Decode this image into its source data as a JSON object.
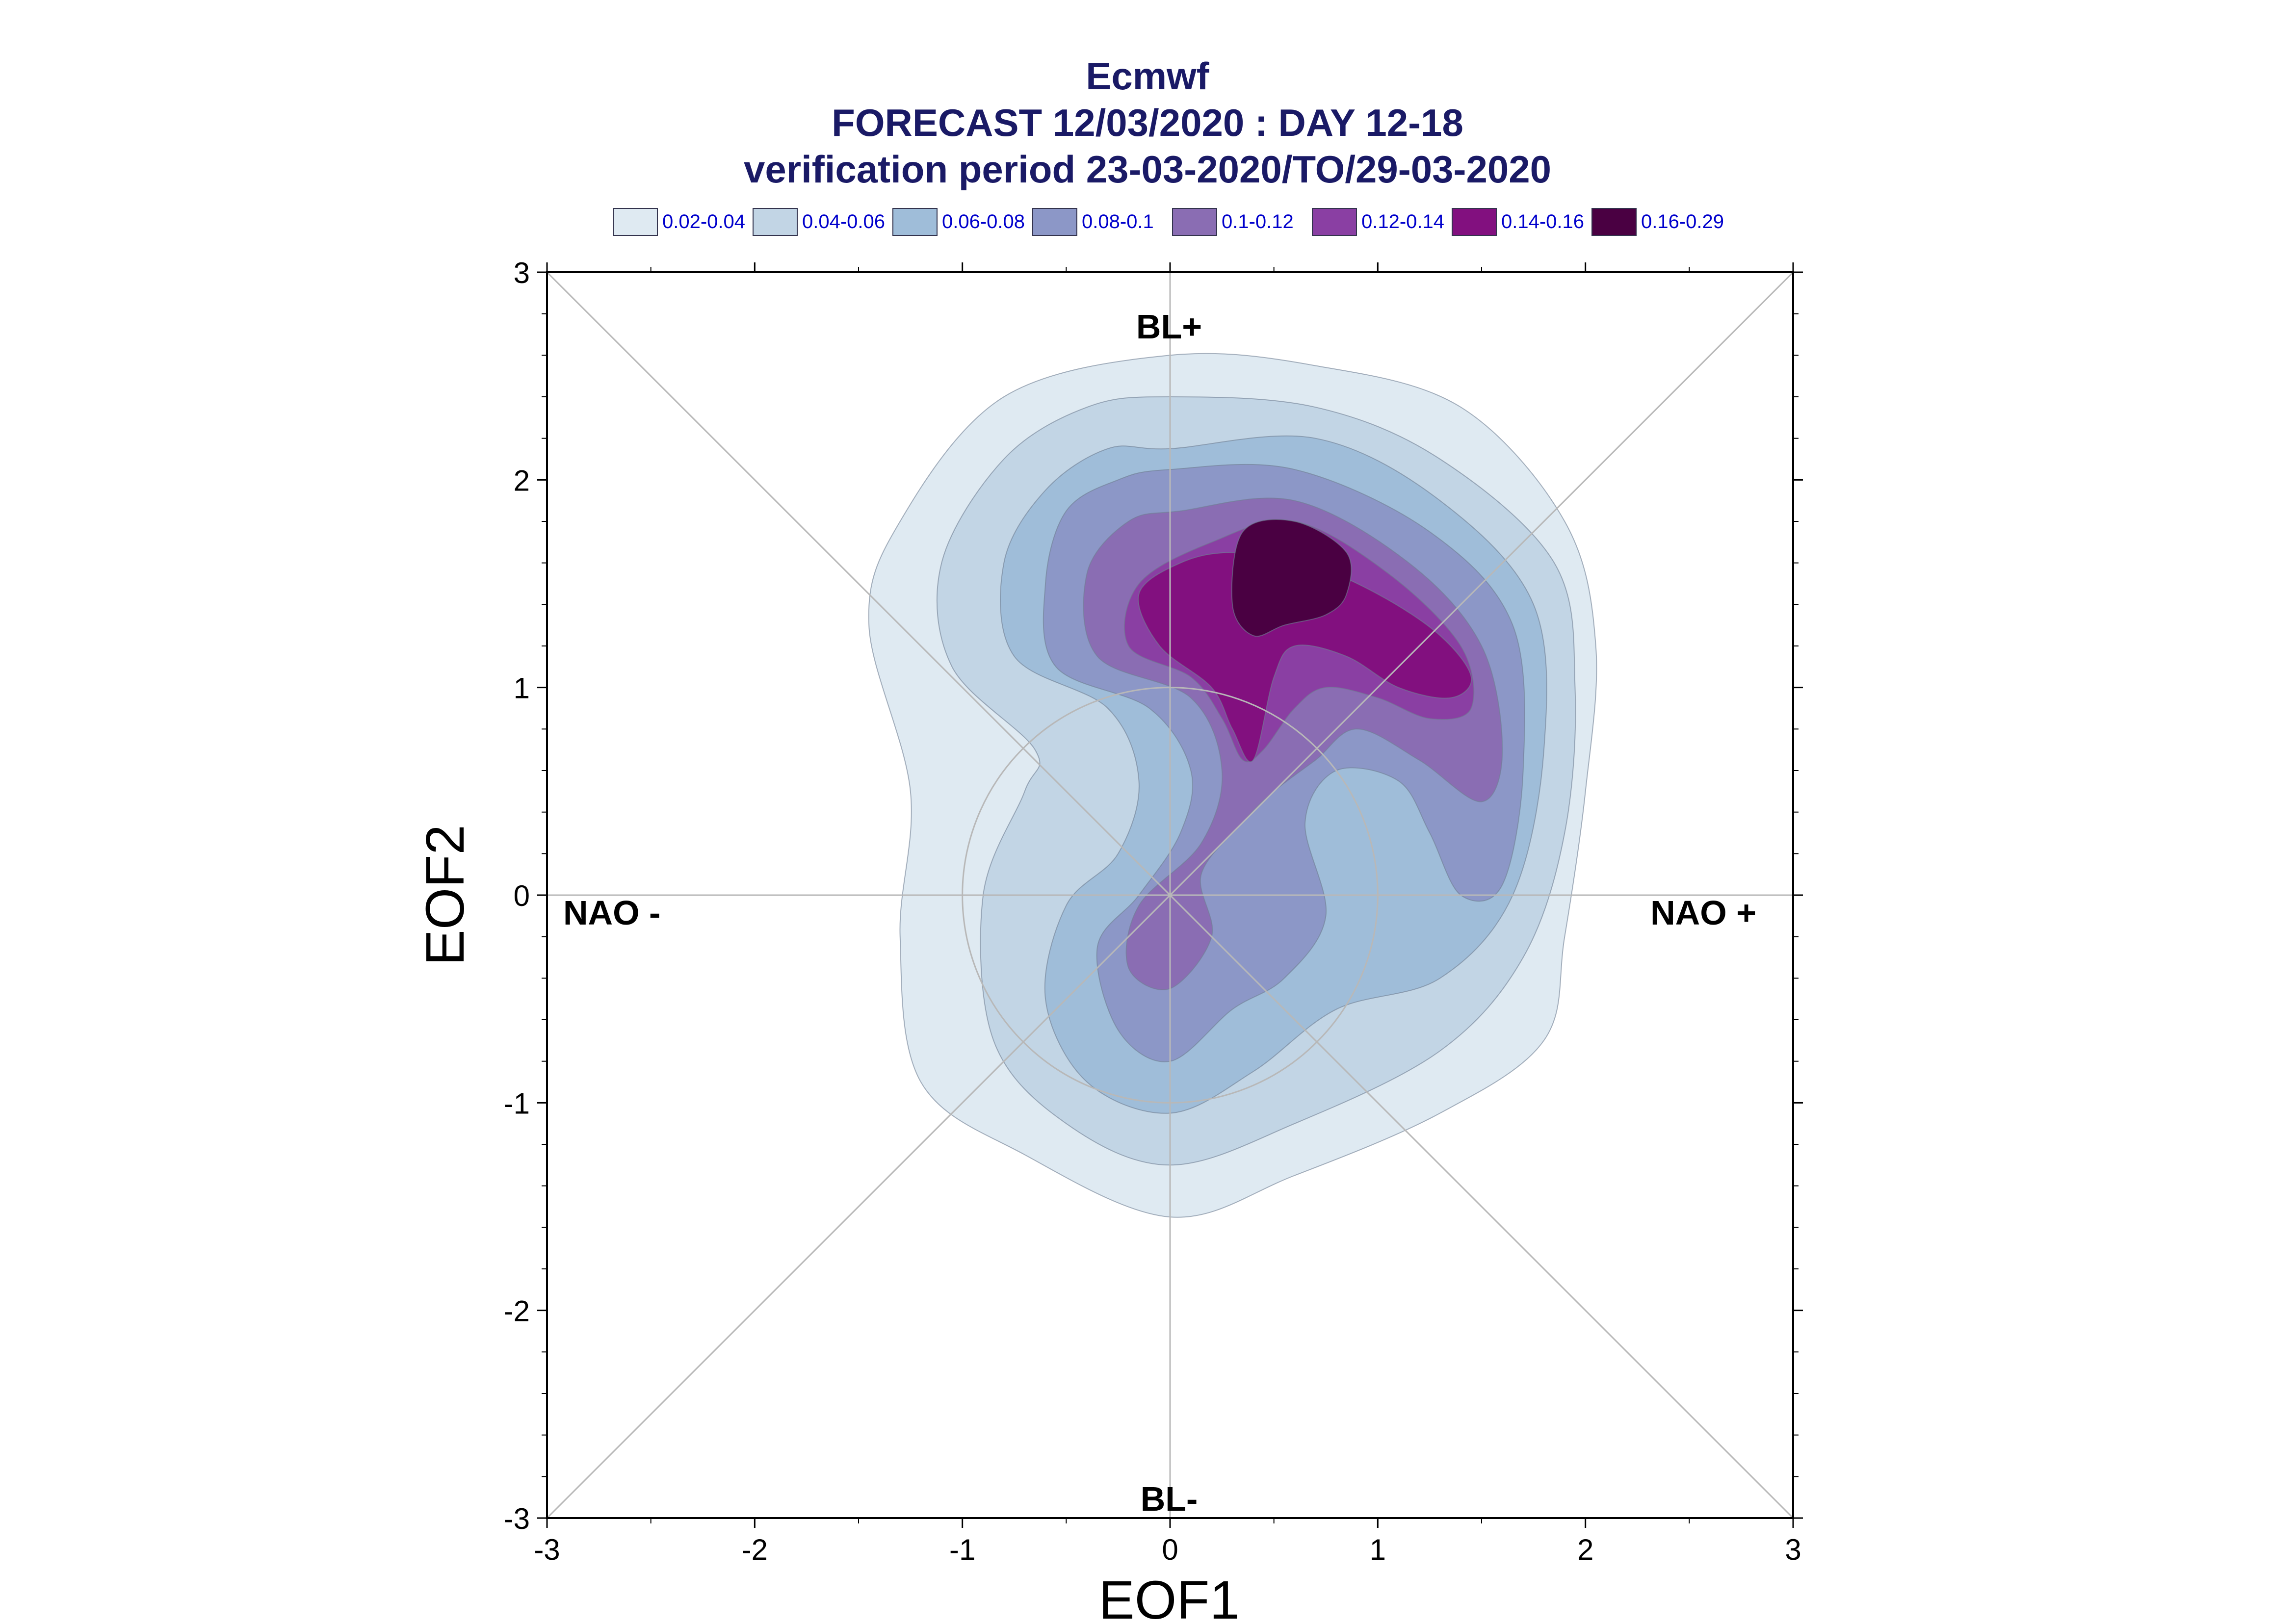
{
  "chart_data": {
    "type": "contour-density",
    "title": "Ecmwf",
    "subtitle_1": "FORECAST 12/03/2020 : DAY 12-18",
    "subtitle_2": "verification period 23-03-2020/TO/29-03-2020",
    "xlabel": "EOF1",
    "ylabel": "EOF2",
    "xlim": [
      -3,
      3
    ],
    "ylim": [
      -3,
      3
    ],
    "xticks": [
      "-3",
      "-2",
      "-1",
      "0",
      "1",
      "2",
      "3"
    ],
    "yticks": [
      "3",
      "2",
      "1",
      "0",
      "-1",
      "-2",
      "-3"
    ],
    "legend_placement": "top",
    "levels": [
      {
        "label": "0.02-0.04",
        "color": "#dfeaf2"
      },
      {
        "label": "0.04-0.06",
        "color": "#c2d5e5"
      },
      {
        "label": "0.06-0.08",
        "color": "#9fbdd9"
      },
      {
        "label": "0.08-0.1",
        "color": "#8c97c7"
      },
      {
        "label": "0.1-0.12",
        "color": "#8a6db3"
      },
      {
        "label": "0.12-0.14",
        "color": "#8a3fa3"
      },
      {
        "label": "0.14-0.16",
        "color": "#82107f"
      },
      {
        "label": "0.16-0.29",
        "color": "#4a0042"
      }
    ],
    "region_labels": {
      "top": "BL+",
      "bottom": "BL-",
      "left": "NAO -",
      "right": "NAO +"
    },
    "max_density_center": [
      0.55,
      1.55
    ],
    "reference_circle_radius": 1.0,
    "contours": [
      {
        "level": 0,
        "points": [
          [
            0.0,
            2.6
          ],
          [
            0.7,
            2.55
          ],
          [
            1.4,
            2.35
          ],
          [
            1.9,
            1.8
          ],
          [
            2.05,
            1.2
          ],
          [
            2.0,
            0.5
          ],
          [
            1.9,
            -0.2
          ],
          [
            1.8,
            -0.7
          ],
          [
            1.3,
            -1.05
          ],
          [
            0.6,
            -1.35
          ],
          [
            0.0,
            -1.55
          ],
          [
            -0.7,
            -1.25
          ],
          [
            -1.2,
            -0.9
          ],
          [
            -1.3,
            -0.2
          ],
          [
            -1.25,
            0.5
          ],
          [
            -1.45,
            1.3
          ],
          [
            -1.3,
            1.8
          ],
          [
            -0.8,
            2.4
          ]
        ]
      },
      {
        "level": 1,
        "points": [
          [
            0.0,
            2.4
          ],
          [
            0.7,
            2.35
          ],
          [
            1.3,
            2.1
          ],
          [
            1.85,
            1.6
          ],
          [
            1.95,
            1.0
          ],
          [
            1.9,
            0.3
          ],
          [
            1.7,
            -0.3
          ],
          [
            1.3,
            -0.75
          ],
          [
            0.6,
            -1.1
          ],
          [
            0.0,
            -1.3
          ],
          [
            -0.5,
            -1.1
          ],
          [
            -0.85,
            -0.7
          ],
          [
            -0.9,
            0.0
          ],
          [
            -0.7,
            0.5
          ],
          [
            -0.65,
            0.7
          ],
          [
            -1.05,
            1.1
          ],
          [
            -1.1,
            1.6
          ],
          [
            -0.8,
            2.1
          ],
          [
            -0.4,
            2.35
          ]
        ]
      },
      {
        "level": 2,
        "points": [
          [
            0.0,
            2.15
          ],
          [
            0.7,
            2.2
          ],
          [
            1.3,
            1.9
          ],
          [
            1.75,
            1.4
          ],
          [
            1.8,
            0.7
          ],
          [
            1.65,
            0.0
          ],
          [
            1.3,
            -0.4
          ],
          [
            0.8,
            -0.55
          ],
          [
            0.4,
            -0.85
          ],
          [
            0.0,
            -1.05
          ],
          [
            -0.4,
            -0.9
          ],
          [
            -0.6,
            -0.5
          ],
          [
            -0.5,
            -0.05
          ],
          [
            -0.25,
            0.2
          ],
          [
            -0.15,
            0.55
          ],
          [
            -0.3,
            0.9
          ],
          [
            -0.75,
            1.15
          ],
          [
            -0.8,
            1.6
          ],
          [
            -0.6,
            1.95
          ],
          [
            -0.3,
            2.15
          ]
        ]
      },
      {
        "level": 3,
        "points": [
          [
            0.0,
            2.05
          ],
          [
            0.6,
            2.05
          ],
          [
            1.25,
            1.75
          ],
          [
            1.65,
            1.3
          ],
          [
            1.7,
            0.6
          ],
          [
            1.6,
            0.05
          ],
          [
            1.4,
            0.0
          ],
          [
            1.25,
            0.3
          ],
          [
            1.1,
            0.55
          ],
          [
            0.8,
            0.6
          ],
          [
            0.65,
            0.35
          ],
          [
            0.75,
            -0.1
          ],
          [
            0.55,
            -0.4
          ],
          [
            0.3,
            -0.55
          ],
          [
            0.0,
            -0.8
          ],
          [
            -0.25,
            -0.65
          ],
          [
            -0.35,
            -0.25
          ],
          [
            -0.15,
            0.0
          ],
          [
            0.05,
            0.3
          ],
          [
            0.1,
            0.6
          ],
          [
            -0.1,
            0.9
          ],
          [
            -0.55,
            1.1
          ],
          [
            -0.6,
            1.5
          ],
          [
            -0.5,
            1.85
          ],
          [
            -0.25,
            2.0
          ]
        ]
      },
      {
        "level": 4,
        "points": [
          [
            0.05,
            1.85
          ],
          [
            0.6,
            1.9
          ],
          [
            1.15,
            1.6
          ],
          [
            1.5,
            1.2
          ],
          [
            1.6,
            0.7
          ],
          [
            1.5,
            0.45
          ],
          [
            1.2,
            0.65
          ],
          [
            0.9,
            0.8
          ],
          [
            0.7,
            0.65
          ],
          [
            0.5,
            0.5
          ],
          [
            0.35,
            0.35
          ],
          [
            0.15,
            0.1
          ],
          [
            0.2,
            -0.2
          ],
          [
            0.0,
            -0.45
          ],
          [
            -0.2,
            -0.35
          ],
          [
            -0.15,
            -0.05
          ],
          [
            0.15,
            0.25
          ],
          [
            0.25,
            0.6
          ],
          [
            0.1,
            0.95
          ],
          [
            -0.35,
            1.15
          ],
          [
            -0.4,
            1.55
          ],
          [
            -0.2,
            1.8
          ]
        ]
      },
      {
        "level": 5,
        "points": [
          [
            0.2,
            1.7
          ],
          [
            0.6,
            1.8
          ],
          [
            1.05,
            1.55
          ],
          [
            1.4,
            1.2
          ],
          [
            1.45,
            0.9
          ],
          [
            1.25,
            0.85
          ],
          [
            1.0,
            0.95
          ],
          [
            0.75,
            1.0
          ],
          [
            0.6,
            0.9
          ],
          [
            0.45,
            0.7
          ],
          [
            0.35,
            0.65
          ],
          [
            0.25,
            0.85
          ],
          [
            0.1,
            1.05
          ],
          [
            -0.2,
            1.2
          ],
          [
            -0.15,
            1.5
          ]
        ]
      },
      {
        "level": 6,
        "points": [
          [
            0.3,
            1.65
          ],
          [
            0.65,
            1.6
          ],
          [
            1.0,
            1.45
          ],
          [
            1.3,
            1.25
          ],
          [
            1.45,
            1.05
          ],
          [
            1.35,
            0.95
          ],
          [
            1.1,
            1.0
          ],
          [
            0.85,
            1.15
          ],
          [
            0.6,
            1.2
          ],
          [
            0.5,
            1.05
          ],
          [
            0.4,
            0.65
          ],
          [
            0.3,
            0.8
          ],
          [
            0.2,
            1.0
          ],
          [
            -0.05,
            1.2
          ],
          [
            -0.15,
            1.45
          ],
          [
            0.05,
            1.6
          ]
        ]
      },
      {
        "level": 7,
        "points": [
          [
            0.35,
            1.75
          ],
          [
            0.6,
            1.8
          ],
          [
            0.85,
            1.65
          ],
          [
            0.85,
            1.45
          ],
          [
            0.75,
            1.35
          ],
          [
            0.55,
            1.3
          ],
          [
            0.4,
            1.25
          ],
          [
            0.3,
            1.4
          ]
        ]
      }
    ]
  }
}
